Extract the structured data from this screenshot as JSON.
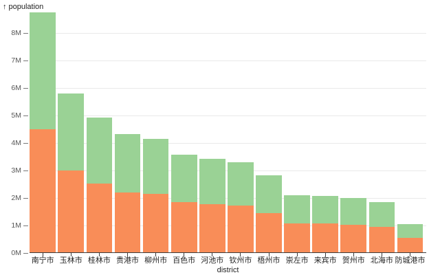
{
  "chart_data": {
    "type": "bar",
    "stacked": true,
    "title": "",
    "xlabel": "district",
    "ylabel": "population",
    "y_axis": {
      "arrow": "↑",
      "label": "population"
    },
    "categories": [
      "南宁市",
      "玉林市",
      "桂林市",
      "贵港市",
      "柳州市",
      "百色市",
      "河池市",
      "钦州市",
      "梧州市",
      "崇左市",
      "来宾市",
      "贺州市",
      "北海市",
      "防城港市"
    ],
    "series": [
      {
        "name": "bottom-orange-segment",
        "color": "#f98d58",
        "values": [
          4.5,
          3.01,
          2.52,
          2.21,
          2.14,
          1.86,
          1.77,
          1.72,
          1.45,
          1.08,
          1.07,
          1.02,
          0.96,
          0.55
        ]
      },
      {
        "name": "top-green-segment",
        "color": "#9ad295",
        "values": [
          4.24,
          2.79,
          2.41,
          2.11,
          2.02,
          1.71,
          1.65,
          1.58,
          1.37,
          1.01,
          1.0,
          0.99,
          0.89,
          0.5
        ]
      }
    ],
    "totals": [
      8.74,
      5.8,
      4.93,
      4.32,
      4.16,
      3.57,
      3.42,
      3.3,
      2.82,
      2.09,
      2.07,
      2.01,
      1.85,
      1.05
    ],
    "y_ticks": [
      "0M",
      "1M",
      "2M",
      "3M",
      "4M",
      "5M",
      "6M",
      "7M",
      "8M"
    ],
    "y_tick_values": [
      0,
      1,
      2,
      3,
      4,
      5,
      6,
      7,
      8
    ],
    "ylim": [
      0,
      8.8
    ],
    "grid": "horizontal",
    "legend": "none"
  },
  "colors": {
    "bar_bottom": "#f98d58",
    "bar_top": "#9ad295",
    "gridline": "#e9e9e9",
    "axis_line": "#3b3b3b",
    "y_tick_text": "#555555",
    "x_tick_text": "#222222"
  }
}
